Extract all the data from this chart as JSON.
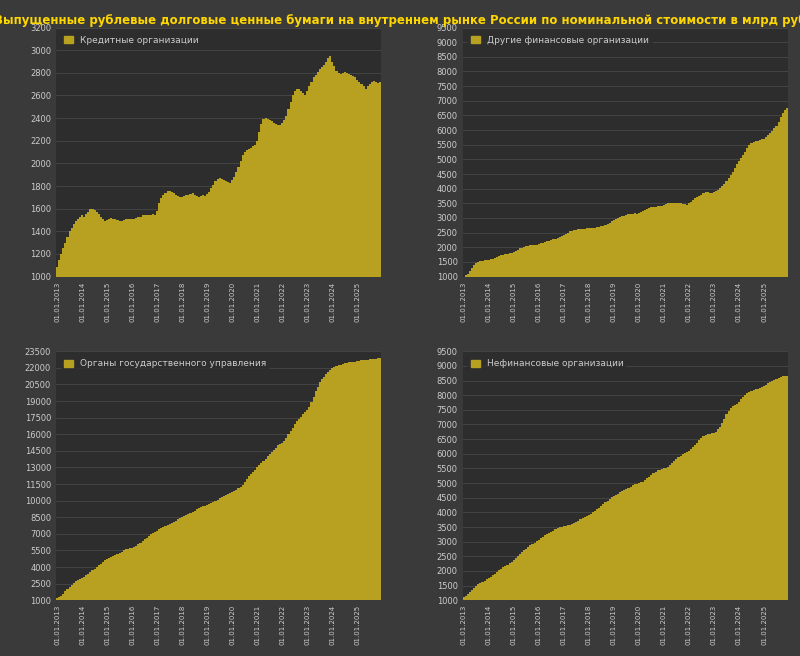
{
  "title": "Выпущенные рублевые долговые ценные бумаги на внутреннем рынке России по номинальной стоимости в млрд руб",
  "title_color": "#FFD700",
  "bg_color": "#3a3a3a",
  "plot_bg_color": "#2d2d2d",
  "bar_color": "#b8a020",
  "grid_color": "#555555",
  "text_color": "#cccccc",
  "subplots": [
    {
      "label": "Кредитные организации",
      "yticks": [
        1000,
        1200,
        1400,
        1600,
        1800,
        2000,
        2200,
        2400,
        2600,
        2800,
        3000,
        3200
      ],
      "ymin": 1000,
      "ymax": 3200,
      "data": [
        1080,
        1150,
        1200,
        1250,
        1300,
        1350,
        1400,
        1430,
        1460,
        1490,
        1510,
        1530,
        1540,
        1530,
        1550,
        1570,
        1600,
        1600,
        1590,
        1570,
        1550,
        1530,
        1510,
        1490,
        1500,
        1510,
        1520,
        1510,
        1505,
        1500,
        1490,
        1495,
        1500,
        1505,
        1510,
        1510,
        1510,
        1510,
        1520,
        1530,
        1530,
        1540,
        1540,
        1540,
        1540,
        1545,
        1550,
        1545,
        1580,
        1650,
        1690,
        1720,
        1740,
        1760,
        1760,
        1750,
        1740,
        1720,
        1710,
        1700,
        1700,
        1710,
        1720,
        1720,
        1730,
        1740,
        1720,
        1710,
        1700,
        1710,
        1720,
        1710,
        1730,
        1750,
        1780,
        1810,
        1840,
        1860,
        1870,
        1860,
        1850,
        1840,
        1835,
        1830,
        1850,
        1880,
        1920,
        1970,
        2020,
        2070,
        2100,
        2120,
        2130,
        2140,
        2150,
        2160,
        2200,
        2280,
        2350,
        2390,
        2400,
        2390,
        2380,
        2370,
        2360,
        2350,
        2340,
        2340,
        2360,
        2380,
        2420,
        2480,
        2540,
        2600,
        2640,
        2660,
        2660,
        2640,
        2620,
        2600,
        2640,
        2680,
        2720,
        2760,
        2780,
        2810,
        2830,
        2850,
        2870,
        2900,
        2930,
        2950,
        2900,
        2860,
        2820,
        2800,
        2790,
        2800,
        2810,
        2800,
        2790,
        2780,
        2770,
        2760,
        2740,
        2720,
        2700,
        2680,
        2660,
        2680,
        2700,
        2720,
        2730,
        2720,
        2710,
        2720
      ]
    },
    {
      "label": "Другие финансовые организации",
      "yticks": [
        1000,
        1500,
        2000,
        2500,
        3000,
        3500,
        4000,
        4500,
        5000,
        5500,
        6000,
        6500,
        7000,
        7500,
        8000,
        8500,
        9000,
        9500
      ],
      "ymin": 1000,
      "ymax": 9500,
      "data": [
        1000,
        1050,
        1100,
        1200,
        1300,
        1380,
        1450,
        1500,
        1520,
        1540,
        1560,
        1570,
        1580,
        1590,
        1610,
        1640,
        1680,
        1710,
        1730,
        1750,
        1760,
        1770,
        1790,
        1810,
        1840,
        1870,
        1910,
        1960,
        1990,
        2010,
        2030,
        2050,
        2060,
        2070,
        2080,
        2090,
        2110,
        2130,
        2160,
        2190,
        2210,
        2230,
        2250,
        2270,
        2290,
        2310,
        2340,
        2380,
        2420,
        2460,
        2500,
        2540,
        2570,
        2590,
        2600,
        2610,
        2620,
        2630,
        2640,
        2650,
        2650,
        2660,
        2670,
        2670,
        2680,
        2690,
        2710,
        2730,
        2760,
        2800,
        2840,
        2880,
        2920,
        2960,
        3000,
        3040,
        3060,
        3080,
        3100,
        3120,
        3140,
        3150,
        3160,
        3150,
        3160,
        3200,
        3240,
        3280,
        3310,
        3340,
        3360,
        3380,
        3390,
        3400,
        3410,
        3420,
        3450,
        3480,
        3500,
        3510,
        3510,
        3510,
        3510,
        3510,
        3500,
        3490,
        3470,
        3440,
        3500,
        3560,
        3620,
        3670,
        3720,
        3760,
        3800,
        3840,
        3870,
        3870,
        3860,
        3850,
        3880,
        3920,
        3970,
        4020,
        4080,
        4160,
        4250,
        4350,
        4450,
        4570,
        4700,
        4850,
        4950,
        5050,
        5150,
        5250,
        5380,
        5480,
        5550,
        5600,
        5620,
        5640,
        5660,
        5680,
        5700,
        5750,
        5820,
        5900,
        5980,
        6060,
        6150,
        6280,
        6450,
        6600,
        6700,
        6750
      ]
    },
    {
      "label": "Органы государственного управления",
      "yticks": [
        1000,
        2500,
        4000,
        5500,
        7000,
        8500,
        10000,
        11500,
        13000,
        14500,
        16000,
        17500,
        19000,
        20500,
        22000,
        23500
      ],
      "ymin": 1000,
      "ymax": 23500,
      "data": [
        1200,
        1300,
        1400,
        1600,
        1800,
        2000,
        2200,
        2400,
        2550,
        2700,
        2800,
        2900,
        3000,
        3100,
        3250,
        3400,
        3550,
        3700,
        3850,
        4000,
        4150,
        4300,
        4450,
        4600,
        4700,
        4800,
        4900,
        5000,
        5100,
        5200,
        5300,
        5400,
        5500,
        5600,
        5650,
        5700,
        5750,
        5800,
        5900,
        6050,
        6200,
        6350,
        6500,
        6650,
        6800,
        6950,
        7100,
        7200,
        7300,
        7400,
        7500,
        7600,
        7700,
        7800,
        7900,
        8000,
        8100,
        8200,
        8300,
        8400,
        8500,
        8600,
        8700,
        8800,
        8900,
        9000,
        9100,
        9200,
        9300,
        9400,
        9500,
        9550,
        9600,
        9700,
        9800,
        9900,
        10000,
        10100,
        10200,
        10300,
        10400,
        10500,
        10600,
        10700,
        10800,
        10900,
        11000,
        11100,
        11200,
        11400,
        11700,
        12000,
        12200,
        12400,
        12600,
        12800,
        13000,
        13200,
        13400,
        13600,
        13800,
        14000,
        14200,
        14400,
        14600,
        14800,
        15000,
        15100,
        15200,
        15400,
        15700,
        16000,
        16300,
        16600,
        16900,
        17200,
        17400,
        17600,
        17800,
        18000,
        18200,
        18500,
        18900,
        19400,
        19900,
        20300,
        20700,
        21000,
        21200,
        21400,
        21600,
        21800,
        22000,
        22100,
        22200,
        22300,
        22300,
        22350,
        22400,
        22450,
        22500,
        22520,
        22540,
        22560,
        22600,
        22640,
        22680,
        22700,
        22720,
        22750,
        22780,
        22800,
        22820,
        22840,
        22860,
        22880
      ]
    },
    {
      "label": "Нефинансовые организации",
      "yticks": [
        1000,
        1500,
        2000,
        2500,
        3000,
        3500,
        4000,
        4500,
        5000,
        5500,
        6000,
        6500,
        7000,
        7500,
        8000,
        8500,
        9000,
        9500
      ],
      "ymin": 1000,
      "ymax": 9500,
      "data": [
        1100,
        1150,
        1200,
        1280,
        1350,
        1420,
        1480,
        1540,
        1590,
        1630,
        1670,
        1710,
        1750,
        1790,
        1850,
        1910,
        1970,
        2020,
        2070,
        2120,
        2170,
        2220,
        2270,
        2320,
        2370,
        2430,
        2500,
        2570,
        2640,
        2700,
        2760,
        2820,
        2870,
        2920,
        2970,
        3020,
        3070,
        3120,
        3170,
        3220,
        3260,
        3300,
        3340,
        3380,
        3420,
        3460,
        3490,
        3510,
        3520,
        3540,
        3560,
        3580,
        3600,
        3640,
        3680,
        3720,
        3760,
        3800,
        3840,
        3880,
        3920,
        3960,
        4000,
        4050,
        4100,
        4160,
        4220,
        4280,
        4340,
        4400,
        4460,
        4510,
        4560,
        4600,
        4640,
        4680,
        4720,
        4760,
        4800,
        4840,
        4880,
        4920,
        4960,
        4980,
        5000,
        5020,
        5050,
        5100,
        5160,
        5220,
        5280,
        5340,
        5390,
        5430,
        5460,
        5480,
        5500,
        5520,
        5560,
        5620,
        5690,
        5760,
        5830,
        5890,
        5940,
        5980,
        6020,
        6060,
        6100,
        6150,
        6220,
        6300,
        6380,
        6460,
        6530,
        6590,
        6640,
        6670,
        6690,
        6700,
        6720,
        6760,
        6830,
        6930,
        7060,
        7200,
        7350,
        7470,
        7560,
        7620,
        7660,
        7700,
        7780,
        7860,
        7940,
        8020,
        8080,
        8120,
        8150,
        8180,
        8200,
        8220,
        8240,
        8270,
        8310,
        8360,
        8410,
        8450,
        8490,
        8520,
        8550,
        8580,
        8610,
        8640,
        8660,
        8670
      ]
    }
  ],
  "x_labels_step": 12,
  "n_points": 156
}
